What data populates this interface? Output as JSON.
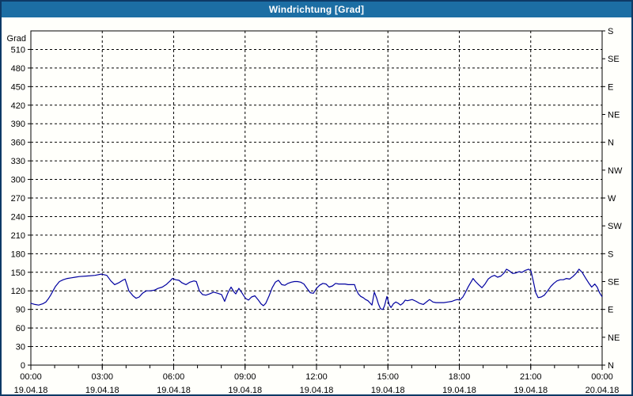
{
  "window": {
    "title": "Windrichtung [Grad]"
  },
  "colors": {
    "titlebar_bg": "#1c6ea4",
    "title_text": "#ffffff",
    "window_border": "#0e3a66",
    "background": "#fffffb",
    "grid": "#000000",
    "axis": "#000000",
    "line": "#0000a0"
  },
  "chart_data": {
    "type": "line",
    "title": "Windrichtung [Grad]",
    "grid": "dashed",
    "left_axis": {
      "label": "Grad",
      "min": 0,
      "max": 540,
      "tick_step": 30,
      "tick_labels": [
        "0",
        "30",
        "60",
        "90",
        "120",
        "150",
        "180",
        "210",
        "240",
        "270",
        "300",
        "330",
        "360",
        "390",
        "420",
        "450",
        "480",
        "510"
      ]
    },
    "right_axis": {
      "tick_step": 45,
      "labels_bottom_to_top": [
        "N",
        "NE",
        "E",
        "SE",
        "S",
        "SW",
        "W",
        "NW",
        "N",
        "NE",
        "E",
        "SE",
        "S"
      ]
    },
    "x_axis": {
      "hours_span": 24,
      "major_step_hours": 3,
      "minor_step_hours": 1,
      "ticks": [
        {
          "time": "00:00",
          "date": "19.04.18"
        },
        {
          "time": "03:00",
          "date": "19.04.18"
        },
        {
          "time": "06:00",
          "date": "19.04.18"
        },
        {
          "time": "09:00",
          "date": "19.04.18"
        },
        {
          "time": "12:00",
          "date": "19.04.18"
        },
        {
          "time": "15:00",
          "date": "19.04.18"
        },
        {
          "time": "18:00",
          "date": "19.04.18"
        },
        {
          "time": "21:00",
          "date": "19.04.18"
        },
        {
          "time": "00:00",
          "date": "20.04.18"
        }
      ]
    },
    "series": [
      {
        "name": "Windrichtung",
        "color": "#0000a0",
        "points_hour_value": [
          [
            0,
            100
          ],
          [
            0.17,
            98
          ],
          [
            0.33,
            97
          ],
          [
            0.5,
            99
          ],
          [
            0.63,
            102
          ],
          [
            0.73,
            107
          ],
          [
            0.83,
            113
          ],
          [
            0.93,
            120
          ],
          [
            1.03,
            127
          ],
          [
            1.2,
            135
          ],
          [
            1.36,
            138
          ],
          [
            1.53,
            140
          ],
          [
            1.7,
            141
          ],
          [
            1.86,
            142
          ],
          [
            2.03,
            143
          ],
          [
            2.36,
            144
          ],
          [
            2.69,
            145
          ],
          [
            2.96,
            147
          ],
          [
            3.19,
            145
          ],
          [
            3.36,
            136
          ],
          [
            3.52,
            130
          ],
          [
            3.69,
            133
          ],
          [
            3.86,
            137
          ],
          [
            3.96,
            139
          ],
          [
            4.12,
            120
          ],
          [
            4.29,
            112
          ],
          [
            4.42,
            108
          ],
          [
            4.55,
            110
          ],
          [
            4.69,
            116
          ],
          [
            4.85,
            120
          ],
          [
            5.02,
            120
          ],
          [
            5.19,
            121
          ],
          [
            5.35,
            124
          ],
          [
            5.52,
            126
          ],
          [
            5.68,
            130
          ],
          [
            5.85,
            136
          ],
          [
            5.95,
            140
          ],
          [
            6.08,
            138
          ],
          [
            6.22,
            137
          ],
          [
            6.35,
            133
          ],
          [
            6.52,
            130
          ],
          [
            6.68,
            134
          ],
          [
            6.85,
            136
          ],
          [
            6.95,
            135
          ],
          [
            7.08,
            120
          ],
          [
            7.21,
            114
          ],
          [
            7.35,
            113
          ],
          [
            7.51,
            115
          ],
          [
            7.68,
            118
          ],
          [
            7.85,
            116
          ],
          [
            8.01,
            114
          ],
          [
            8.14,
            103
          ],
          [
            8.28,
            117
          ],
          [
            8.41,
            126
          ],
          [
            8.54,
            118
          ],
          [
            8.61,
            115
          ],
          [
            8.74,
            124
          ],
          [
            8.88,
            116
          ],
          [
            9.01,
            108
          ],
          [
            9.14,
            105
          ],
          [
            9.27,
            110
          ],
          [
            9.41,
            112
          ],
          [
            9.54,
            106
          ],
          [
            9.67,
            99
          ],
          [
            9.77,
            96
          ],
          [
            9.87,
            100
          ],
          [
            10.01,
            112
          ],
          [
            10.14,
            125
          ],
          [
            10.27,
            134
          ],
          [
            10.4,
            137
          ],
          [
            10.54,
            130
          ],
          [
            10.67,
            129
          ],
          [
            10.8,
            132
          ],
          [
            10.94,
            134
          ],
          [
            11.07,
            135
          ],
          [
            11.2,
            135
          ],
          [
            11.34,
            134
          ],
          [
            11.47,
            131
          ],
          [
            11.6,
            124
          ],
          [
            11.74,
            117
          ],
          [
            11.87,
            116
          ],
          [
            12,
            124
          ],
          [
            12.13,
            129
          ],
          [
            12.27,
            132
          ],
          [
            12.4,
            131
          ],
          [
            12.53,
            126
          ],
          [
            12.67,
            128
          ],
          [
            12.8,
            132
          ],
          [
            12.93,
            131
          ],
          [
            13.06,
            131
          ],
          [
            13.2,
            131
          ],
          [
            13.33,
            130
          ],
          [
            13.46,
            130
          ],
          [
            13.6,
            130
          ],
          [
            13.66,
            123
          ],
          [
            13.76,
            115
          ],
          [
            13.86,
            111
          ],
          [
            13.96,
            109
          ],
          [
            14.06,
            106
          ],
          [
            14.16,
            104
          ],
          [
            14.26,
            100
          ],
          [
            14.33,
            97
          ],
          [
            14.43,
            118
          ],
          [
            14.53,
            108
          ],
          [
            14.6,
            99
          ],
          [
            14.69,
            91
          ],
          [
            14.79,
            90
          ],
          [
            14.86,
            96
          ],
          [
            14.96,
            111
          ],
          [
            15.06,
            97
          ],
          [
            15.13,
            93
          ],
          [
            15.23,
            99
          ],
          [
            15.33,
            102
          ],
          [
            15.43,
            100
          ],
          [
            15.53,
            97
          ],
          [
            15.63,
            100
          ],
          [
            15.73,
            105
          ],
          [
            15.82,
            104
          ],
          [
            16.02,
            106
          ],
          [
            16.19,
            103
          ],
          [
            16.32,
            100
          ],
          [
            16.49,
            98
          ],
          [
            16.65,
            103
          ],
          [
            16.75,
            106
          ],
          [
            16.89,
            102
          ],
          [
            17.02,
            101
          ],
          [
            17.19,
            101
          ],
          [
            17.35,
            101
          ],
          [
            17.52,
            102
          ],
          [
            17.69,
            103
          ],
          [
            17.82,
            105
          ],
          [
            17.92,
            106
          ],
          [
            18.02,
            105
          ],
          [
            18.15,
            110
          ],
          [
            18.25,
            117
          ],
          [
            18.38,
            127
          ],
          [
            18.52,
            136
          ],
          [
            18.58,
            140
          ],
          [
            18.68,
            135
          ],
          [
            18.81,
            130
          ],
          [
            18.95,
            125
          ],
          [
            19.08,
            131
          ],
          [
            19.21,
            139
          ],
          [
            19.35,
            143
          ],
          [
            19.48,
            145
          ],
          [
            19.61,
            142
          ],
          [
            19.75,
            144
          ],
          [
            19.88,
            149
          ],
          [
            19.98,
            155
          ],
          [
            20.11,
            152
          ],
          [
            20.24,
            148
          ],
          [
            20.38,
            149
          ],
          [
            20.51,
            151
          ],
          [
            20.64,
            150
          ],
          [
            20.77,
            153
          ],
          [
            20.91,
            155
          ],
          [
            21.01,
            152
          ],
          [
            21.11,
            135
          ],
          [
            21.21,
            117
          ],
          [
            21.31,
            109
          ],
          [
            21.44,
            110
          ],
          [
            21.57,
            113
          ],
          [
            21.71,
            120
          ],
          [
            21.84,
            127
          ],
          [
            21.97,
            132
          ],
          [
            22.1,
            136
          ],
          [
            22.24,
            138
          ],
          [
            22.37,
            138
          ],
          [
            22.5,
            140
          ],
          [
            22.63,
            139
          ],
          [
            22.77,
            143
          ],
          [
            22.9,
            148
          ],
          [
            23.03,
            155
          ],
          [
            23.16,
            150
          ],
          [
            23.3,
            141
          ],
          [
            23.43,
            133
          ],
          [
            23.56,
            126
          ],
          [
            23.69,
            131
          ],
          [
            23.79,
            126
          ],
          [
            23.89,
            117
          ],
          [
            23.99,
            111
          ]
        ]
      }
    ]
  }
}
